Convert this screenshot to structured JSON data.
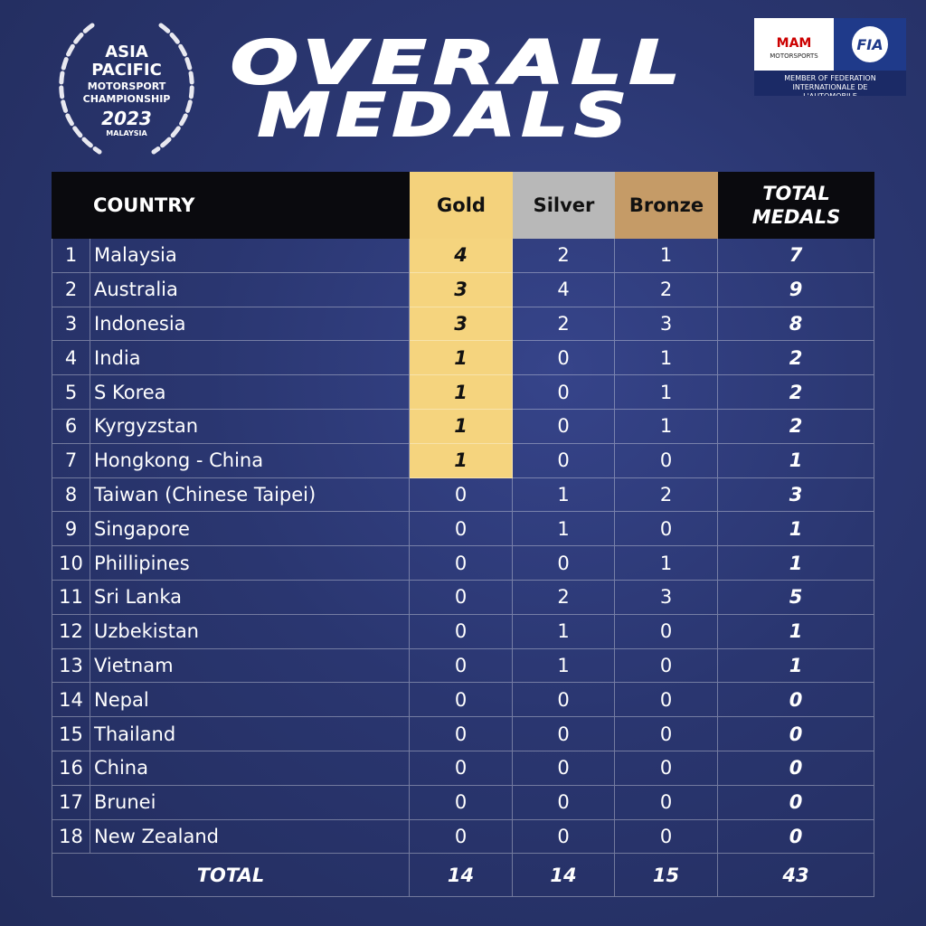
{
  "logo": {
    "line1": "ASIA",
    "line2": "PACIFIC",
    "line3": "MOTORSPORT",
    "line4": "CHAMPIONSHIP",
    "year": "2023",
    "country": "MALAYSIA"
  },
  "title": {
    "line1": "OVERALL",
    "line2": "MEDALS"
  },
  "partner": {
    "mam": "MAM",
    "mam_sub": "MOTORSPORTS",
    "fia": "FIA",
    "caption": "MEMBER OF FEDERATION INTERNATIONALE DE L'AUTOMOBILE"
  },
  "table": {
    "columns": [
      "COUNTRY",
      "Gold",
      "Silver",
      "Bronze",
      "TOTAL MEDALS"
    ],
    "rows": [
      [
        1,
        "Malaysia",
        4,
        2,
        1,
        7
      ],
      [
        2,
        "Australia",
        3,
        4,
        2,
        9
      ],
      [
        3,
        "Indonesia",
        3,
        2,
        3,
        8
      ],
      [
        4,
        "India",
        1,
        0,
        1,
        2
      ],
      [
        5,
        "S Korea",
        1,
        0,
        1,
        2
      ],
      [
        6,
        "Kyrgyzstan",
        1,
        0,
        1,
        2
      ],
      [
        7,
        "Hongkong - China",
        1,
        0,
        0,
        1
      ],
      [
        8,
        "Taiwan (Chinese Taipei)",
        0,
        1,
        2,
        3
      ],
      [
        9,
        "Singapore",
        0,
        1,
        0,
        1
      ],
      [
        10,
        "Phillipines",
        0,
        0,
        1,
        1
      ],
      [
        11,
        "Sri Lanka",
        0,
        2,
        3,
        5
      ],
      [
        12,
        "Uzbekistan",
        0,
        1,
        0,
        1
      ],
      [
        13,
        "Vietnam",
        0,
        1,
        0,
        1
      ],
      [
        14,
        "Nepal",
        0,
        0,
        0,
        0
      ],
      [
        15,
        "Thailand",
        0,
        0,
        0,
        0
      ],
      [
        16,
        "China",
        0,
        0,
        0,
        0
      ],
      [
        17,
        "Brunei",
        0,
        0,
        0,
        0
      ],
      [
        18,
        "New Zealand",
        0,
        0,
        0,
        0
      ]
    ],
    "total": [
      "TOTAL",
      14,
      14,
      15,
      43
    ]
  }
}
